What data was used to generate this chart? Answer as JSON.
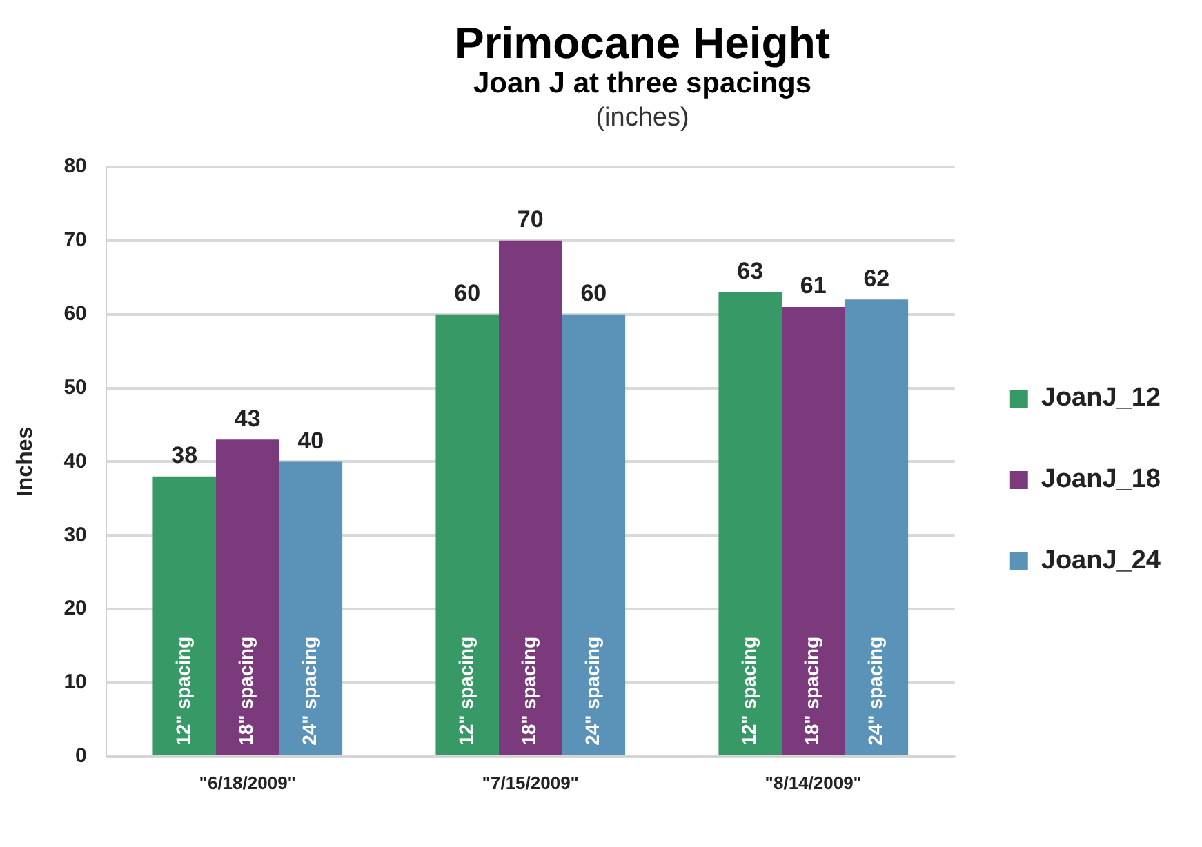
{
  "chart_data": {
    "type": "bar",
    "title": "Primocane Height",
    "subtitle": "Joan J at three spacings",
    "ylabel": "Inches",
    "categories": [
      "\"6/18/2009\"",
      "\"7/15/2009\"",
      "\"8/14/2009\""
    ],
    "series": [
      {
        "name": "JoanJ_12",
        "color": "#379a66",
        "values": [
          38,
          60,
          63
        ]
      },
      {
        "name": "JoanJ_18",
        "color": "#7b3a7c",
        "values": [
          43,
          70,
          61
        ]
      },
      {
        "name": "JoanJ_24",
        "color": "#5b92b8",
        "values": [
          40,
          60,
          62
        ]
      }
    ],
    "ylim": [
      0,
      80
    ],
    "yticks": [
      0,
      10,
      20,
      30,
      40,
      50,
      60,
      70,
      80
    ],
    "grid": "y",
    "legend": "right",
    "data_labels": true,
    "annotations": [
      "(inches)",
      "12\" spacing",
      "18\" spacing",
      "24\" spacing",
      "12\" spacing",
      "18\" spacing",
      "24\" spacing",
      "12\" spacing",
      "18\" spacing",
      "24\" spacing"
    ]
  }
}
